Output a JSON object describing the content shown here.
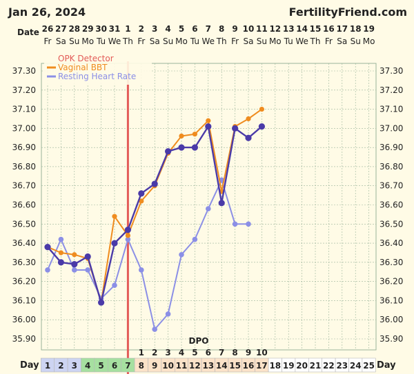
{
  "header": {
    "date": "Jan 26, 2024",
    "site": "FertilityFriend.com"
  },
  "labels": {
    "date_row": "Date",
    "day_row": "Day",
    "dpo": "DPO"
  },
  "colors": {
    "background": "#fffbe6",
    "grid": "#9ab39a",
    "opk": "#e35b57",
    "bbt": "#ef8c1f",
    "hr": "#8b8fe6",
    "combined": "#4a3aa8",
    "green_cell": "#a6e0a0",
    "blue_cell": "#cdd4f2",
    "peach_cell": "#fbe2c8",
    "white_cell": "#ffffff"
  },
  "chart_data": {
    "type": "line",
    "title": "",
    "ylim": [
      35.9,
      37.3
    ],
    "yticks": [
      "37.30",
      "37.20",
      "37.10",
      "37.00",
      "36.90",
      "36.80",
      "36.70",
      "36.60",
      "36.50",
      "36.40",
      "36.30",
      "36.20",
      "36.10",
      "36.00",
      "35.90"
    ],
    "date_numbers": [
      "26",
      "27",
      "28",
      "29",
      "30",
      "31",
      "1",
      "2",
      "3",
      "4",
      "5",
      "6",
      "7",
      "8",
      "9",
      "10",
      "11",
      "12",
      "13",
      "14",
      "15",
      "16",
      "17",
      "18",
      "19"
    ],
    "weekdays": [
      "Fr",
      "Sa",
      "Su",
      "Mo",
      "Tu",
      "We",
      "Th",
      "Fr",
      "Sa",
      "Su",
      "Mo",
      "Tu",
      "We",
      "Th",
      "Fr",
      "Sa",
      "Su",
      "Mo",
      "Tu",
      "We",
      "Th",
      "Fr",
      "Sa",
      "Su",
      "Mo"
    ],
    "cycle_days": [
      "1",
      "2",
      "3",
      "4",
      "5",
      "6",
      "7",
      "8",
      "9",
      "10",
      "11",
      "12",
      "13",
      "14",
      "15",
      "16",
      "17",
      "18",
      "19",
      "20",
      "21",
      "22",
      "23",
      "24",
      "25"
    ],
    "day_cell_colors": [
      "blue",
      "blue",
      "blue",
      "green",
      "green",
      "green",
      "green",
      "peach",
      "peach",
      "peach",
      "peach",
      "peach",
      "peach",
      "peach",
      "peach",
      "peach",
      "peach",
      "white",
      "white",
      "white",
      "white",
      "white",
      "white",
      "white",
      "white"
    ],
    "dpo": [
      "1",
      "2",
      "3",
      "4",
      "5",
      "6",
      "7",
      "8",
      "9",
      "10"
    ],
    "dpo_start_day": 8,
    "opk_line_day": 7,
    "legend": [
      "OPK Detector",
      "Vaginal BBT",
      "Resting Heart Rate"
    ],
    "series": [
      {
        "name": "Vaginal BBT",
        "color": "bbt",
        "x": [
          1,
          2,
          3,
          4,
          5,
          6,
          7,
          8,
          9,
          10,
          11,
          12,
          13,
          14,
          15,
          16,
          17
        ],
        "values": [
          36.38,
          36.35,
          36.34,
          36.32,
          36.09,
          36.54,
          36.44,
          36.62,
          36.7,
          36.87,
          36.96,
          36.97,
          37.04,
          36.67,
          37.01,
          37.05,
          37.1
        ]
      },
      {
        "name": "Resting Heart Rate",
        "color": "hr",
        "x": [
          1,
          2,
          3,
          4,
          5,
          6,
          7,
          8,
          9,
          10,
          11,
          12,
          13,
          14,
          15,
          16
        ],
        "values": [
          36.26,
          36.42,
          36.26,
          36.26,
          36.11,
          36.18,
          36.42,
          36.26,
          35.95,
          36.03,
          36.34,
          36.42,
          36.58,
          36.73,
          36.5,
          36.5
        ]
      },
      {
        "name": "",
        "color": "combined",
        "x": [
          1,
          2,
          3,
          4,
          5,
          6,
          7,
          8,
          9,
          10,
          11,
          12,
          13,
          14,
          15,
          16,
          17
        ],
        "values": [
          36.38,
          36.3,
          36.29,
          36.33,
          36.09,
          36.4,
          36.47,
          36.66,
          36.71,
          36.88,
          36.9,
          36.9,
          37.01,
          36.61,
          37.0,
          36.95,
          37.01
        ]
      }
    ]
  }
}
